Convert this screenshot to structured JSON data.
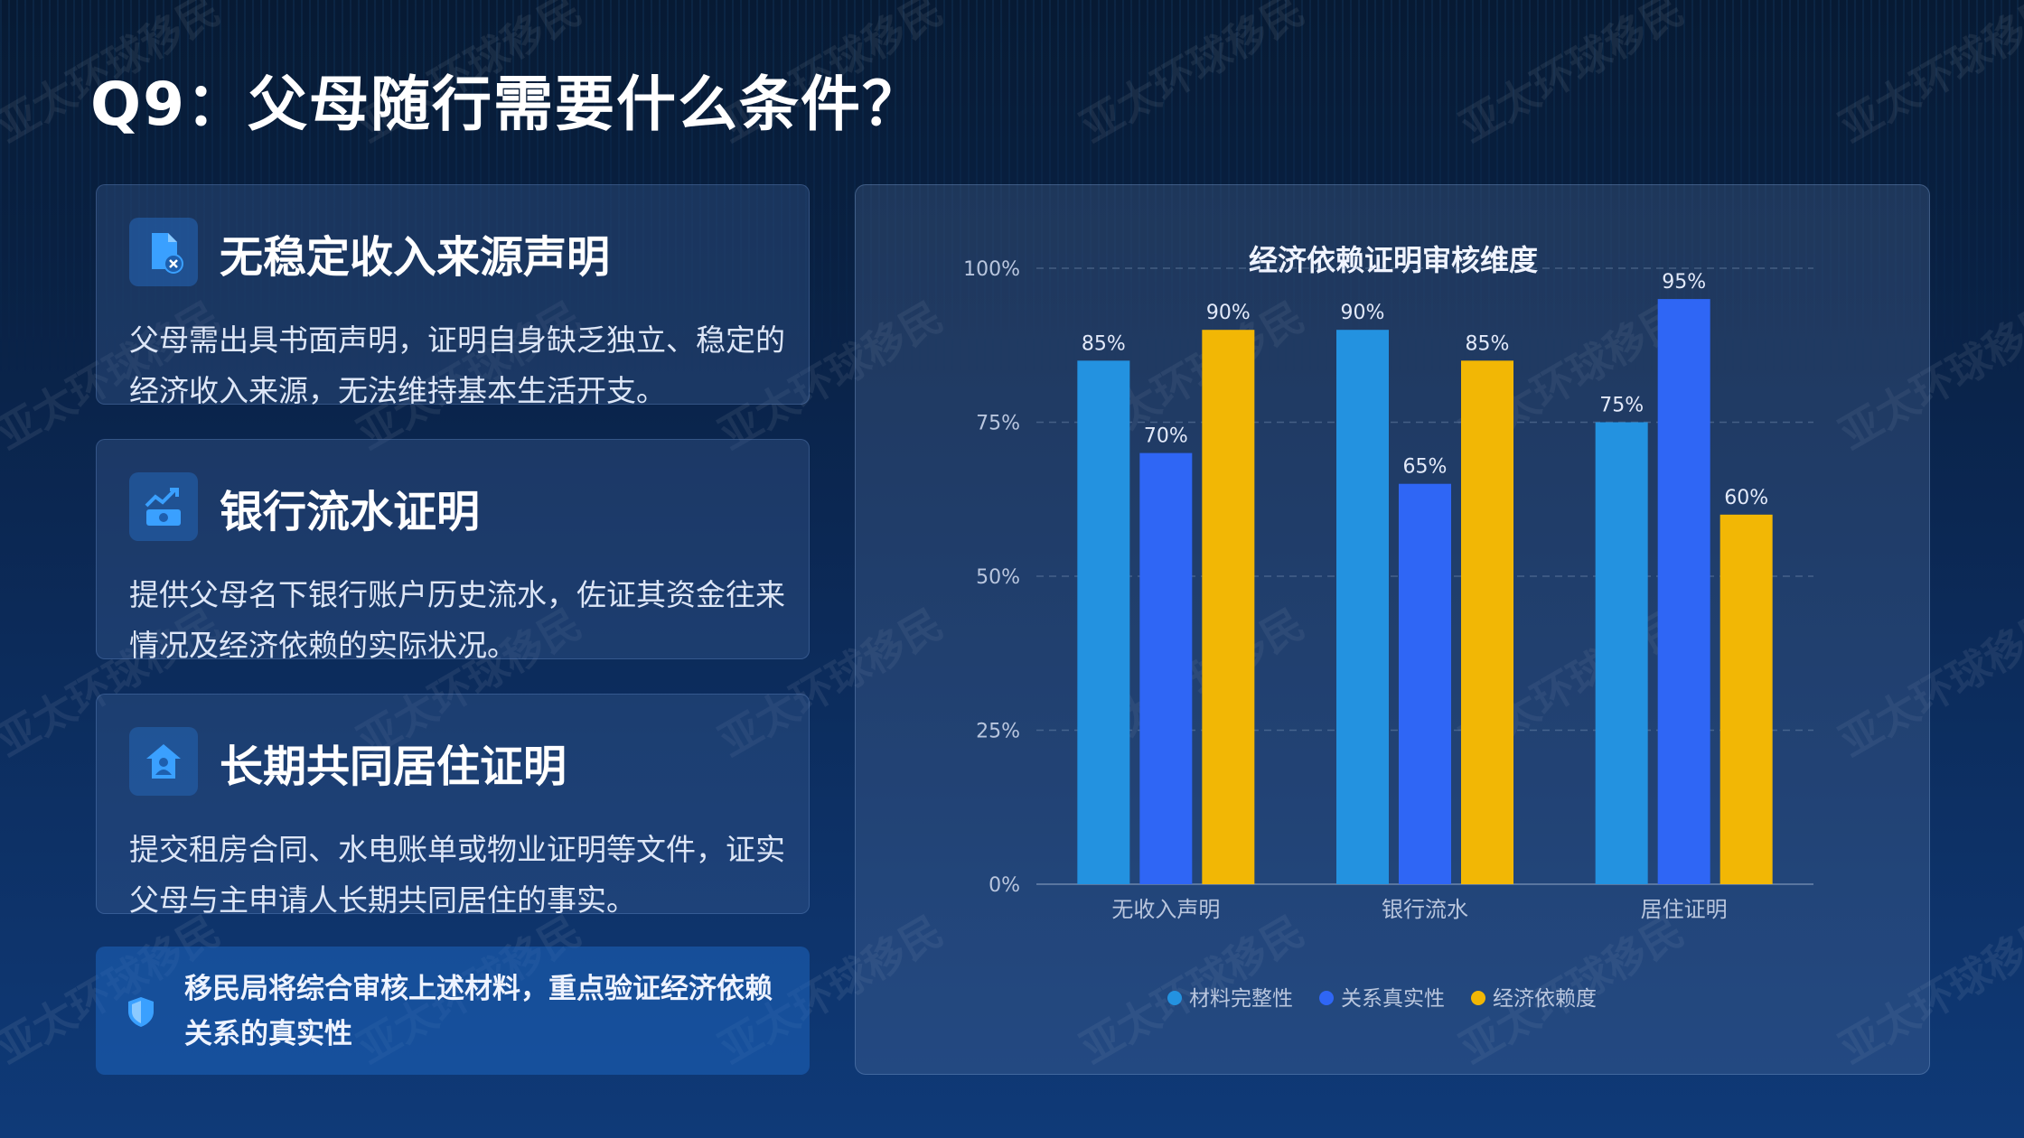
{
  "page": {
    "title": "Q9：父母随行需要什么条件？",
    "watermark": "亚太环球移民"
  },
  "cards": [
    {
      "icon": "file-cancel-icon",
      "title": "无稳定收入来源声明",
      "text": "父母需出具书面声明，证明自身缺乏独立、稳定的经济收入来源，无法维持基本生活开支。"
    },
    {
      "icon": "money-chart-icon",
      "title": "银行流水证明",
      "text": "提供父母名下银行账户历史流水，佐证其资金往来情况及经济依赖的实际状况。"
    },
    {
      "icon": "house-user-icon",
      "title": "长期共同居住证明",
      "text": "提交租房合同、水电账单或物业证明等文件，证实父母与主申请人长期共同居住的事实。"
    }
  ],
  "note": {
    "icon": "shield-icon",
    "text": "移民局将综合审核上述材料，重点验证经济依赖关系的真实性"
  },
  "colors": {
    "material": "#2392e0",
    "relation": "#2f66f5",
    "economic": "#f2b705",
    "grid": "#8da2c4",
    "axis_text": "#b9c6de"
  },
  "chart_data": {
    "type": "bar",
    "title": "经济依赖证明审核维度",
    "categories": [
      "无收入声明",
      "银行流水",
      "居住证明"
    ],
    "series": [
      {
        "name": "材料完整性",
        "color": "#2392e0",
        "values": [
          85,
          90,
          75
        ]
      },
      {
        "name": "关系真实性",
        "color": "#2f66f5",
        "values": [
          70,
          65,
          95
        ]
      },
      {
        "name": "经济依赖度",
        "color": "#f2b705",
        "values": [
          90,
          85,
          60
        ]
      }
    ],
    "y_ticks": [
      "0%",
      "25%",
      "50%",
      "75%",
      "100%"
    ],
    "ylim": [
      0,
      100
    ],
    "value_suffix": "%",
    "grid": true,
    "legend_position": "bottom"
  }
}
